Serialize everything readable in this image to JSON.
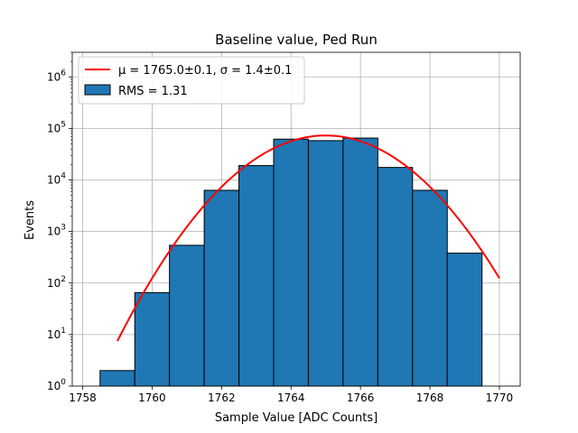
{
  "chart_data": {
    "type": "bar",
    "title": "Baseline value, Ped Run",
    "xlabel": "Sample Value [ADC Counts]",
    "ylabel": "Events",
    "y_scale": "log",
    "xlim": [
      1757.7,
      1770.6
    ],
    "ylim": [
      1,
      3000000
    ],
    "grid": true,
    "legend_position": "top-left",
    "x_ticks": [
      {
        "value": 1758,
        "label": "1758"
      },
      {
        "value": 1760,
        "label": "1760"
      },
      {
        "value": 1762,
        "label": "1762"
      },
      {
        "value": 1764,
        "label": "1764"
      },
      {
        "value": 1766,
        "label": "1766"
      },
      {
        "value": 1768,
        "label": "1768"
      },
      {
        "value": 1770,
        "label": "1770"
      }
    ],
    "y_ticks": [
      {
        "value": 1,
        "base": "10",
        "exp": "0"
      },
      {
        "value": 10,
        "base": "10",
        "exp": "1"
      },
      {
        "value": 100,
        "base": "10",
        "exp": "2"
      },
      {
        "value": 1000,
        "base": "10",
        "exp": "3"
      },
      {
        "value": 10000,
        "base": "10",
        "exp": "4"
      },
      {
        "value": 100000,
        "base": "10",
        "exp": "5"
      },
      {
        "value": 1000000,
        "base": "10",
        "exp": "6"
      }
    ],
    "histogram": {
      "name": "RMS = 1.31",
      "color": "#1f77b4",
      "edge_color": "#000000",
      "bin_edges": [
        1758.5,
        1759.5,
        1760.5,
        1761.5,
        1762.5,
        1763.5,
        1764.5,
        1765.5,
        1766.5,
        1767.5,
        1768.5,
        1769.5
      ],
      "counts": [
        2,
        65,
        540,
        6300,
        19000,
        62000,
        58000,
        65000,
        17500,
        6300,
        380
      ]
    },
    "fit": {
      "name": "μ = 1765.0±0.1, σ = 1.4±0.1",
      "color": "#ff0000",
      "x_range": [
        1759,
        1770
      ],
      "mu": 1765.0,
      "sigma": 1.4,
      "amplitude": 73000
    }
  }
}
